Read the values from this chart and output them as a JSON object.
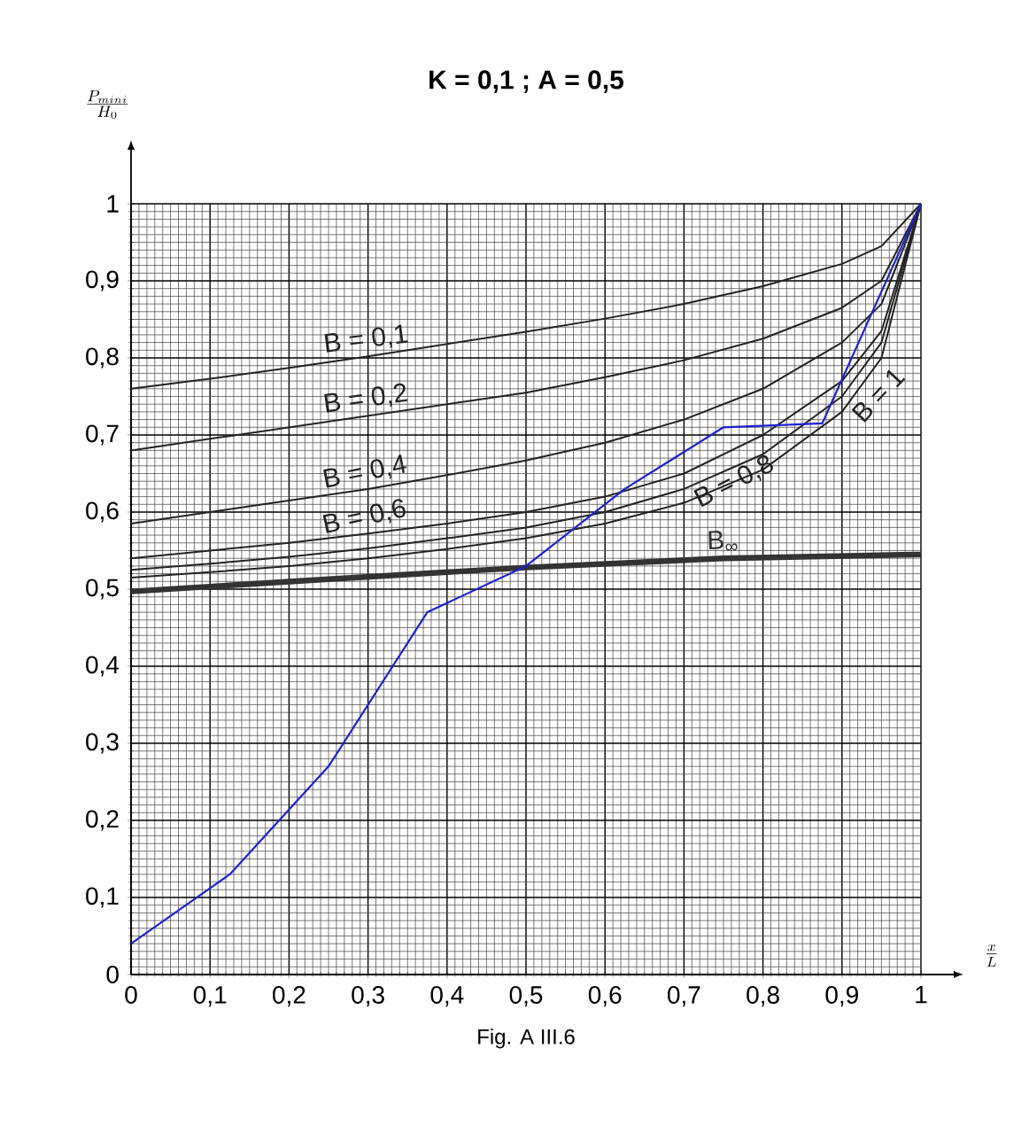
{
  "chart_data": {
    "type": "line",
    "title": "K = 0,1   ;   A = 0,5",
    "ylabel": "\\frac{P_{mini}}{H_0}",
    "xlabel": "\\frac{x}{L}",
    "annotations": [
      "Fig. A III.6"
    ],
    "x": [
      0,
      0.1,
      0.2,
      0.3,
      0.4,
      0.5,
      0.6,
      0.7,
      0.8,
      0.9,
      0.95,
      1
    ],
    "series": [
      {
        "name": "B = 0,1",
        "color": "#222222",
        "values": [
          0.76,
          0.773,
          0.787,
          0.802,
          0.818,
          0.834,
          0.851,
          0.87,
          0.893,
          0.922,
          0.945,
          1
        ]
      },
      {
        "name": "B = 0,2",
        "color": "#222222",
        "values": [
          0.68,
          0.695,
          0.71,
          0.725,
          0.74,
          0.755,
          0.775,
          0.797,
          0.825,
          0.865,
          0.9,
          1
        ]
      },
      {
        "name": "B = 0,4",
        "color": "#222222",
        "values": [
          0.585,
          0.6,
          0.615,
          0.63,
          0.648,
          0.667,
          0.69,
          0.72,
          0.76,
          0.82,
          0.87,
          1
        ]
      },
      {
        "name": "B = 0,6",
        "color": "#222222",
        "values": [
          0.54,
          0.55,
          0.56,
          0.572,
          0.585,
          0.6,
          0.62,
          0.65,
          0.7,
          0.77,
          0.835,
          1
        ]
      },
      {
        "name": "B = 0,8",
        "color": "#222222",
        "values": [
          0.525,
          0.533,
          0.542,
          0.553,
          0.566,
          0.58,
          0.6,
          0.63,
          0.675,
          0.75,
          0.82,
          1
        ]
      },
      {
        "name": "B = 1",
        "color": "#222222",
        "values": [
          0.515,
          0.522,
          0.53,
          0.54,
          0.552,
          0.566,
          0.585,
          0.612,
          0.655,
          0.73,
          0.8,
          1
        ]
      },
      {
        "name": "B$_{∞}$",
        "color": "#333333",
        "x": [
          0,
          0.25,
          0.5,
          0.75,
          1
        ],
        "values": [
          0.497,
          0.513,
          0.528,
          0.54,
          0.545
        ]
      },
      {
        "color": "#2020d0",
        "x": [
          0,
          0.125,
          0.25,
          0.375,
          0.5,
          0.625,
          0.75,
          0.875,
          1
        ],
        "values": [
          0.04,
          0.13,
          0.27,
          0.47,
          0.53,
          0.63,
          0.71,
          0.715,
          1
        ]
      }
    ],
    "xlim": [
      0,
      1
    ],
    "ylim": [
      0,
      1
    ],
    "xticks": [
      0,
      {
        "value": 0.1,
        "label": "0,1"
      },
      {
        "value": 0.2,
        "label": "0,2"
      },
      {
        "value": 0.3,
        "label": "0,3"
      },
      {
        "value": 0.4,
        "label": "0,4"
      },
      {
        "value": 0.5,
        "label": "0,5"
      },
      {
        "value": 0.6,
        "label": "0,6"
      },
      {
        "value": 0.7,
        "label": "0,7"
      },
      {
        "value": 0.8,
        "label": "0,8"
      },
      {
        "value": 0.9,
        "label": "0,9"
      },
      1
    ],
    "yticks": [
      0,
      {
        "value": 0.1,
        "label": "0,1"
      },
      {
        "value": 0.2,
        "label": "0,2"
      },
      {
        "value": 0.3,
        "label": "0,3"
      },
      {
        "value": 0.4,
        "label": "0,4"
      },
      {
        "value": 0.5,
        "label": "0,5"
      },
      {
        "value": 0.6,
        "label": "0,6"
      },
      {
        "value": 0.7,
        "label": "0,7"
      },
      {
        "value": 0.8,
        "label": "0,8"
      },
      {
        "value": 0.9,
        "label": "0,9"
      },
      1
    ],
    "grid": true,
    "marker": "none",
    "line_style": "solid"
  }
}
